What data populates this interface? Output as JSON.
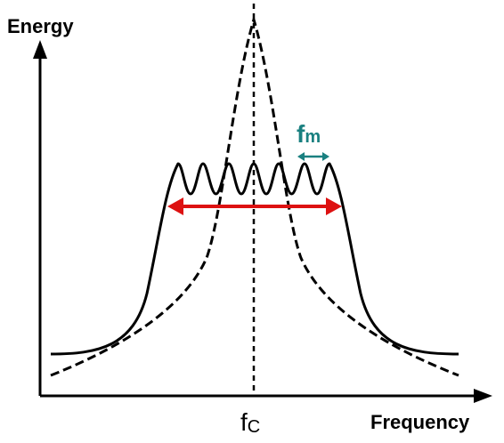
{
  "labels": {
    "y_axis": "Energy",
    "x_axis": "Frequency",
    "center_freq_main": "f",
    "center_freq_sub": "C",
    "mod_freq_main": "f",
    "mod_freq_sub": "m"
  },
  "colors": {
    "axis": "#000000",
    "curves": "#000000",
    "bandwidth_arrow": "#dd1111",
    "fm_label": "#1a8080",
    "fm_arrow": "#1a8080"
  }
}
